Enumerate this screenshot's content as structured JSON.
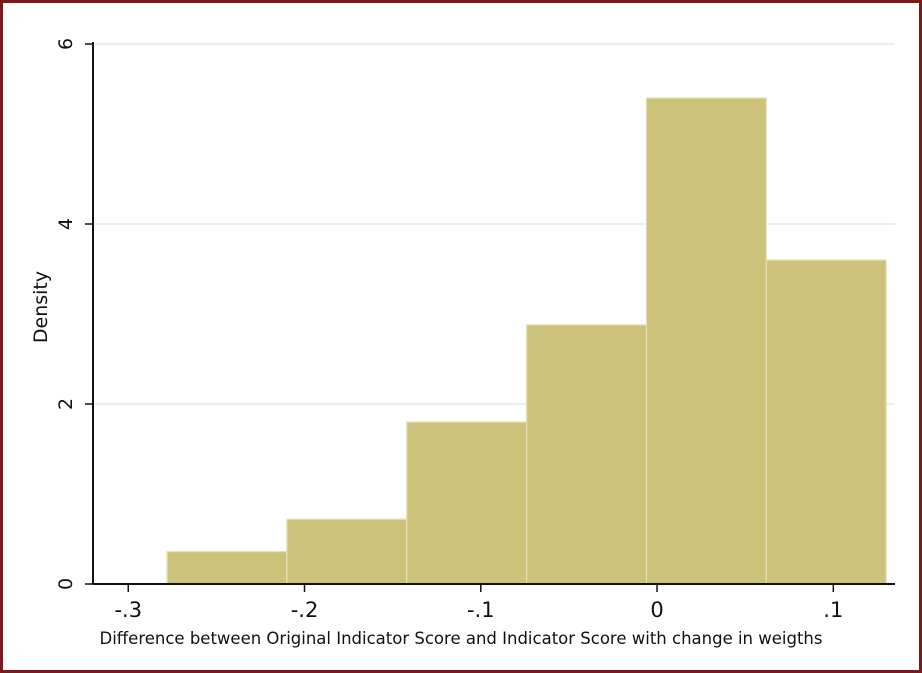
{
  "chart_data": {
    "type": "bar",
    "xlabel": "Difference between Original Indicator Score and Indicator Score with change in weigths",
    "ylabel": "Density",
    "xlim": [
      -0.32,
      0.135
    ],
    "ylim": [
      0,
      6
    ],
    "x_ticks": [
      -0.3,
      -0.2,
      -0.1,
      0,
      0.1
    ],
    "x_tick_labels": [
      "-.3",
      "-.2",
      "-.1",
      "0",
      ".1"
    ],
    "y_ticks": [
      0,
      2,
      4,
      6
    ],
    "y_tick_labels": [
      "0",
      "2",
      "4",
      "6"
    ],
    "grid": true,
    "bins": [
      {
        "x0": -0.278,
        "x1": -0.21,
        "density": 0.36
      },
      {
        "x0": -0.21,
        "x1": -0.142,
        "density": 0.72
      },
      {
        "x0": -0.142,
        "x1": -0.074,
        "density": 1.8
      },
      {
        "x0": -0.074,
        "x1": -0.006,
        "density": 2.88
      },
      {
        "x0": -0.006,
        "x1": 0.062,
        "density": 5.4
      },
      {
        "x0": 0.062,
        "x1": 0.13,
        "density": 3.6
      }
    ],
    "colors": {
      "bar_fill": "#cdc27a",
      "bar_edge": "#e6dfb6",
      "grid": "#e3ece9",
      "frame": "#7a1a1a"
    }
  }
}
